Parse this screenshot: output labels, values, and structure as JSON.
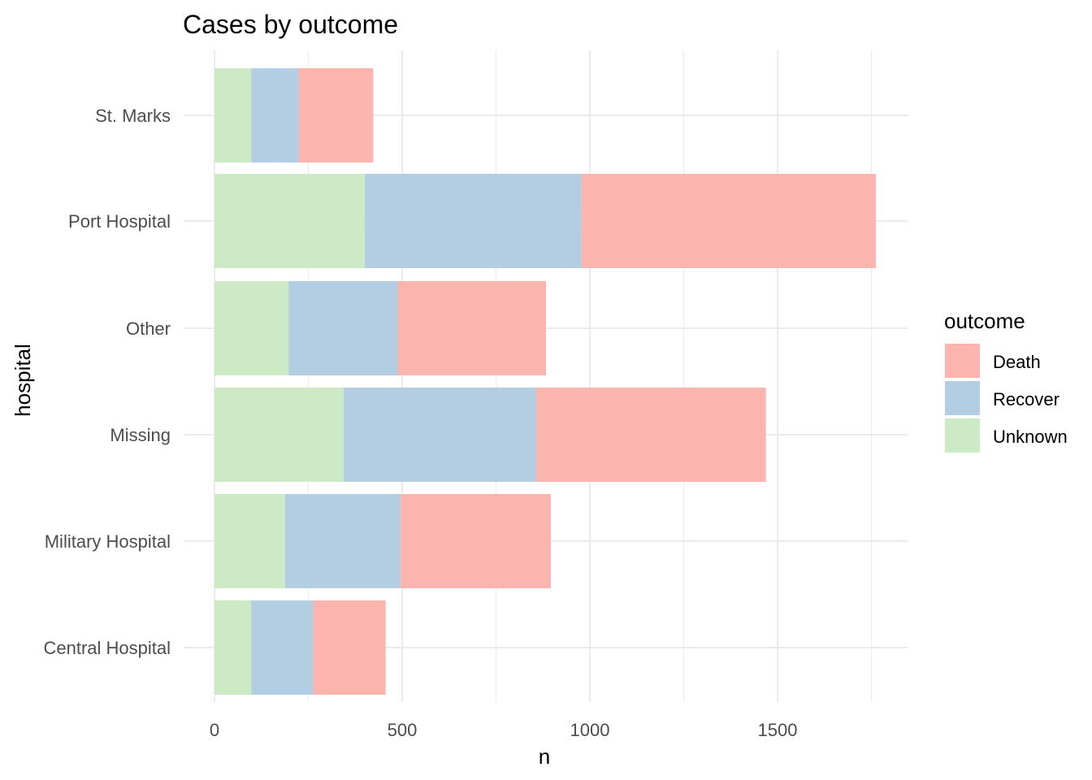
{
  "chart_data": {
    "type": "bar",
    "orientation": "horizontal",
    "stacked": true,
    "title": "Cases by outcome",
    "xlabel": "n",
    "ylabel": "hospital",
    "xlim": [
      0,
      1850
    ],
    "xticks": [
      0,
      500,
      1000,
      1500
    ],
    "grid": true,
    "categories": [
      "Central Hospital",
      "Military Hospital",
      "Missing",
      "Other",
      "Port Hospital",
      "St. Marks"
    ],
    "series": [
      {
        "name": "Unknown",
        "color": "#CCEBC5",
        "values": [
          98,
          188,
          344,
          198,
          400,
          98
        ]
      },
      {
        "name": "Recover",
        "color": "#B3CDE3",
        "values": [
          165,
          308,
          513,
          290,
          578,
          126
        ]
      },
      {
        "name": "Death",
        "color": "#FBB4AE",
        "values": [
          193,
          400,
          612,
          395,
          784,
          199
        ]
      }
    ],
    "legend": {
      "title": "outcome",
      "position": "right",
      "entries": [
        "Death",
        "Recover",
        "Unknown"
      ]
    }
  }
}
